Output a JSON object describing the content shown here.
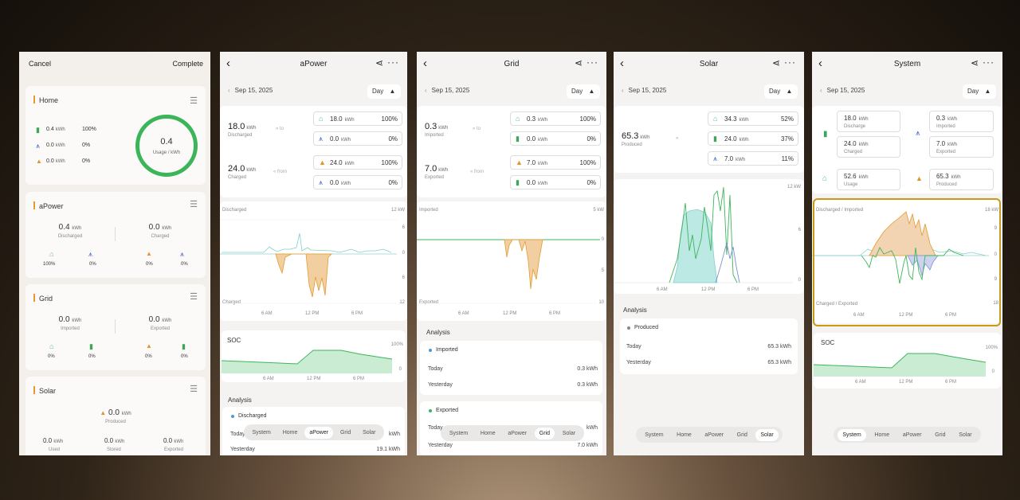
{
  "colors": {
    "green": "#3cb55a",
    "orange": "#e59a2f",
    "teal": "#7fd0cd",
    "blue": "#7f8fd8",
    "highlight": "#c79a1a"
  },
  "icons": {
    "home": "home-icon",
    "grid": "transmission-tower-icon",
    "solar": "solar-panel-icon",
    "battery": "battery-icon"
  },
  "p1": {
    "cancel": "Cancel",
    "complete": "Complete",
    "home": {
      "title": "Home",
      "rows": [
        {
          "v": "0.4",
          "u": "kWh",
          "p": "100%"
        },
        {
          "v": "0.0",
          "u": "kWh",
          "p": "0%"
        },
        {
          "v": "0.0",
          "u": "kWh",
          "p": "0%"
        }
      ],
      "ring_value": "0.4",
      "ring_label": "Usage / kWh"
    },
    "apower": {
      "title": "aPower",
      "left": {
        "v": "0.4",
        "u": "kWh",
        "l": "Discharged"
      },
      "right": {
        "v": "0.0",
        "u": "kWh",
        "l": "Charged"
      },
      "pcts": [
        "100%",
        "0%",
        "0%",
        "0%"
      ]
    },
    "grid": {
      "title": "Grid",
      "left": {
        "v": "0.0",
        "u": "kWh",
        "l": "Imported"
      },
      "right": {
        "v": "0.0",
        "u": "kWh",
        "l": "Exported"
      },
      "pcts": [
        "0%",
        "0%",
        "0%",
        "0%"
      ]
    },
    "solar": {
      "title": "Solar",
      "main": {
        "v": "0.0",
        "u": "kWh",
        "l": "Produced"
      },
      "cols": [
        {
          "v": "0.0",
          "u": "kWh",
          "l": "Used"
        },
        {
          "v": "0.0",
          "u": "kWh",
          "l": "Stored"
        },
        {
          "v": "0.0",
          "u": "kWh",
          "l": "Exported"
        }
      ]
    }
  },
  "tabs": [
    "System",
    "Home",
    "aPower",
    "Grid",
    "Solar"
  ],
  "date": "Sep 15, 2025",
  "range": "Day",
  "p2": {
    "title": "aPower",
    "top": {
      "v": "18.0",
      "u": "kWh",
      "l": "Discharged",
      "dir": "to",
      "boxes": [
        {
          "v": "18.0",
          "u": "kWh",
          "p": "100%"
        },
        {
          "v": "0.0",
          "u": "kWh",
          "p": "0%"
        }
      ]
    },
    "bot": {
      "v": "24.0",
      "u": "kWh",
      "l": "Charged",
      "dir": "from",
      "boxes": [
        {
          "v": "24.0",
          "u": "kWh",
          "p": "100%"
        },
        {
          "v": "0.0",
          "u": "kWh",
          "p": "0%"
        }
      ]
    },
    "chart": {
      "top_label": "Discharged",
      "bottom_label": "Charged",
      "unit": "12 kW",
      "ticks": [
        "6",
        "0",
        "6",
        "12"
      ],
      "x": [
        "6 AM",
        "12 PM",
        "6 PM"
      ]
    },
    "soc": {
      "title": "SOC",
      "max": "100%",
      "min": "0",
      "x": [
        "6 AM",
        "12 PM",
        "6 PM"
      ]
    },
    "analysis": {
      "title": "Analysis",
      "series": "Discharged",
      "today": "Today",
      "today_val": "kWh",
      "yesterday": "Yesterday",
      "yesterday_val": "19.1 kWh"
    }
  },
  "p3": {
    "title": "Grid",
    "top": {
      "v": "0.3",
      "u": "kWh",
      "l": "Imported",
      "dir": "to",
      "boxes": [
        {
          "v": "0.3",
          "u": "kWh",
          "p": "100%"
        },
        {
          "v": "0.0",
          "u": "kWh",
          "p": "0%"
        }
      ]
    },
    "bot": {
      "v": "7.0",
      "u": "kWh",
      "l": "Exported",
      "dir": "from",
      "boxes": [
        {
          "v": "7.0",
          "u": "kWh",
          "p": "100%"
        },
        {
          "v": "0.0",
          "u": "kWh",
          "p": "0%"
        }
      ]
    },
    "chart": {
      "top_label": "Imported",
      "bottom_label": "Exported",
      "unit": "5 kW",
      "ticks": [
        "0",
        "5",
        "10"
      ],
      "x": [
        "6 AM",
        "12 PM",
        "6 PM"
      ]
    },
    "analysis": {
      "title": "Analysis",
      "s1": "Imported",
      "today": "Today",
      "t1": "0.3 kWh",
      "yesterday": "Yesterday",
      "y1": "0.3 kWh",
      "s2": "Exported",
      "t2": "kWh",
      "y2": "7.0 kWh"
    }
  },
  "p4": {
    "title": "Solar",
    "main": {
      "v": "65.3",
      "u": "kWh",
      "l": "Produced"
    },
    "boxes": [
      {
        "v": "34.3",
        "u": "kWh",
        "p": "52%"
      },
      {
        "v": "24.0",
        "u": "kWh",
        "p": "37%"
      },
      {
        "v": "7.0",
        "u": "kWh",
        "p": "11%"
      }
    ],
    "chart": {
      "unit": "12 kW",
      "ticks": [
        "6",
        "0"
      ],
      "x": [
        "6 AM",
        "12 PM",
        "6 PM"
      ]
    },
    "analysis": {
      "title": "Analysis",
      "series": "Produced",
      "today": "Today",
      "today_val": "65.3 kWh",
      "yesterday": "Yesterday",
      "yesterday_val": "65.3 kWh"
    }
  },
  "p5": {
    "title": "System",
    "left": [
      {
        "v": "18.0",
        "u": "kWh",
        "l": "Discharge"
      },
      {
        "v": "24.0",
        "u": "kWh",
        "l": "Charged"
      },
      {
        "v": "52.6",
        "u": "kWh",
        "l": "Usage"
      }
    ],
    "right": [
      {
        "v": "0.3",
        "u": "kWh",
        "l": "Imported"
      },
      {
        "v": "7.0",
        "u": "kWh",
        "l": "Exported"
      },
      {
        "v": "65.3",
        "u": "kWh",
        "l": "Produced"
      }
    ],
    "chart": {
      "top_label": "Discharged / Imported",
      "bottom_label": "Charged / Exported",
      "unit": "18 kW",
      "ticks": [
        "9",
        "0",
        "9",
        "18"
      ],
      "x": [
        "6 AM",
        "12 PM",
        "6 PM"
      ]
    },
    "soc": {
      "title": "SOC",
      "max": "100%",
      "min": "0",
      "x": [
        "6 AM",
        "12 PM",
        "6 PM"
      ]
    }
  }
}
